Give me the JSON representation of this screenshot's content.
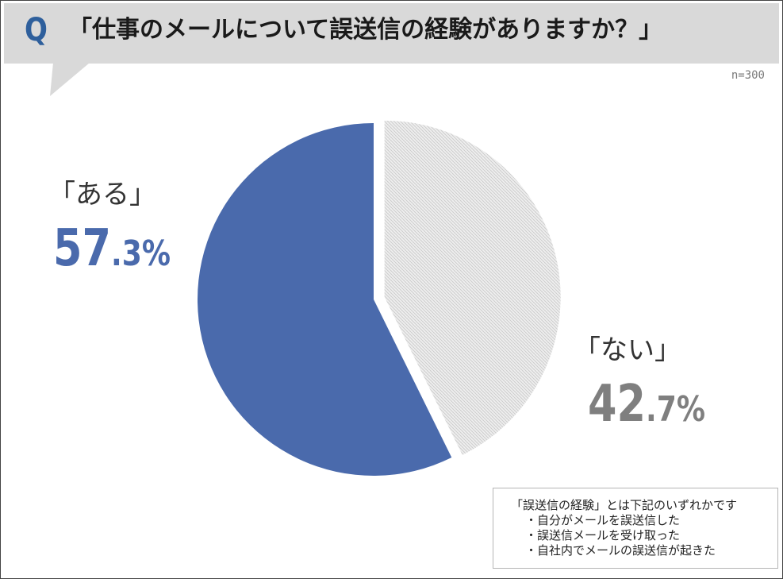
{
  "question": {
    "mark": "Q",
    "text": "「仕事のメールについて誤送信の経験がありますか？」"
  },
  "sample_size": "n=300",
  "chart_data": {
    "type": "pie",
    "title": "「仕事のメールについて誤送信の経験がありますか？」",
    "slices": [
      {
        "label": "「ある」",
        "value": 57.3,
        "value_int": "57",
        "value_dec": ".3",
        "unit": "%",
        "color": "#4a6aac"
      },
      {
        "label": "「ない」",
        "value": 42.7,
        "value_int": "42",
        "value_dec": ".7",
        "unit": "%",
        "color": "#d9d9d9"
      }
    ]
  },
  "note": {
    "heading": "「誤送信の経験」とは下記のいずれかです",
    "items": [
      "・自分がメールを誤送信した",
      "・誤送信メールを受け取った",
      "・自社内でメールの誤送信が起きた"
    ]
  }
}
